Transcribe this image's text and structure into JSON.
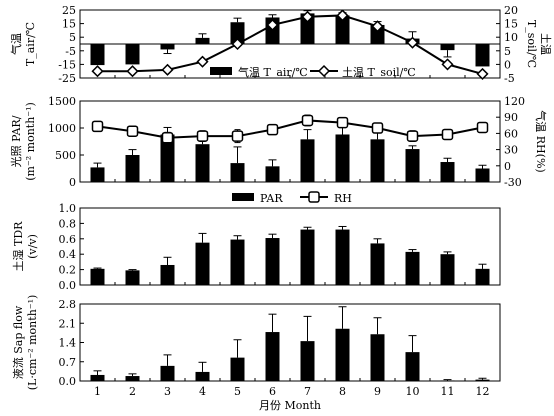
{
  "chart_data": [
    {
      "type": "bar+line",
      "panel": "a",
      "ylabel_left_lines": [
        "气温",
        "T_air/℃"
      ],
      "ylabel_right_lines": [
        "土温",
        "T_soil/℃"
      ],
      "ylim_left": [
        -25,
        25
      ],
      "yticks_left": [
        -25,
        -15,
        -5,
        5,
        15,
        25
      ],
      "ylim_right": [
        -5,
        20
      ],
      "yticks_right": [
        -5,
        0,
        5,
        10,
        15,
        20
      ],
      "categories": [
        1,
        2,
        3,
        4,
        5,
        6,
        7,
        8,
        9,
        10,
        11,
        12
      ],
      "series": [
        {
          "name": "气温 T_air/℃",
          "kind": "bar",
          "axis": "left",
          "values": [
            -15.5,
            -15,
            -4,
            4.5,
            16,
            19.5,
            22.5,
            21,
            14,
            4,
            -4.5,
            -16.5
          ],
          "errors": [
            0,
            0,
            3,
            3,
            3,
            2,
            2,
            2,
            2.5,
            5,
            5,
            0
          ]
        },
        {
          "name": "土温 T_soil/℃",
          "kind": "line",
          "axis": "right",
          "values": [
            -2.5,
            -2.5,
            -2,
            1,
            7.5,
            14.5,
            17.5,
            18,
            14,
            8,
            0,
            -3.5
          ]
        }
      ],
      "legend": [
        {
          "symbol": "bar",
          "label": "气温 T_air/℃"
        },
        {
          "symbol": "diamond-line",
          "label": "土温 T_soil/℃"
        }
      ]
    },
    {
      "type": "bar+line",
      "panel": "b",
      "ylabel_left_lines": [
        "光照 PAR/",
        "(m⁻² month⁻¹)"
      ],
      "ylabel_right": "气温 RH(%)",
      "ylim_left": [
        0,
        1500
      ],
      "yticks_left": [
        0,
        500,
        1000,
        1500
      ],
      "ylim_right": [
        -30,
        120
      ],
      "yticks_right": [
        -30,
        0,
        30,
        60,
        90,
        120
      ],
      "categories": [
        1,
        2,
        3,
        4,
        5,
        6,
        7,
        8,
        9,
        10,
        11,
        12
      ],
      "series": [
        {
          "name": "PAR",
          "kind": "bar",
          "axis": "left",
          "values": [
            270,
            500,
            880,
            700,
            350,
            290,
            790,
            880,
            790,
            610,
            370,
            250
          ],
          "errors": [
            80,
            100,
            130,
            160,
            300,
            120,
            180,
            150,
            150,
            60,
            70,
            60
          ]
        },
        {
          "name": "RH",
          "kind": "line",
          "axis": "right",
          "values": [
            73,
            64,
            52,
            55,
            55,
            67,
            84,
            80,
            70,
            55,
            58,
            71
          ],
          "errors": [
            0,
            5,
            10,
            10,
            12,
            8,
            10,
            7,
            7,
            10,
            0,
            0
          ]
        }
      ],
      "legend": [
        {
          "symbol": "bar",
          "label": "PAR"
        },
        {
          "symbol": "square-line",
          "label": "RH"
        }
      ]
    },
    {
      "type": "bar",
      "panel": "c",
      "ylabel_lines": [
        "土湿 TDR",
        "(v/v)"
      ],
      "ylim": [
        0,
        1.0
      ],
      "yticks": [
        0,
        0.2,
        0.4,
        0.6,
        0.8,
        1.0
      ],
      "ytick_labels": [
        "0.0",
        "0.2",
        "0.4",
        "0.6",
        "0.8",
        "1.0"
      ],
      "categories": [
        1,
        2,
        3,
        4,
        5,
        6,
        7,
        8,
        9,
        10,
        11,
        12
      ],
      "series": [
        {
          "name": "TDR",
          "kind": "bar",
          "values": [
            0.21,
            0.19,
            0.26,
            0.55,
            0.59,
            0.61,
            0.72,
            0.72,
            0.54,
            0.43,
            0.4,
            0.21
          ],
          "errors": [
            0.01,
            0.01,
            0.1,
            0.12,
            0.05,
            0.05,
            0.03,
            0.04,
            0.06,
            0.03,
            0.03,
            0.06
          ]
        }
      ]
    },
    {
      "type": "bar",
      "panel": "d",
      "ylabel_lines": [
        "液流 Sap flow",
        "(L·cm⁻² month⁻¹)"
      ],
      "ylim": [
        0,
        2.8
      ],
      "yticks": [
        0,
        0.7,
        1.4,
        2.1,
        2.8
      ],
      "ytick_labels": [
        "0.0",
        "0.7",
        "1.4",
        "2.1",
        "2.8"
      ],
      "xlabel": "月份 Month",
      "categories": [
        1,
        2,
        3,
        4,
        5,
        6,
        7,
        8,
        9,
        10,
        11,
        12
      ],
      "series": [
        {
          "name": "Sap flow",
          "kind": "bar",
          "values": [
            0.22,
            0.18,
            0.55,
            0.33,
            0.85,
            1.78,
            1.45,
            1.9,
            1.7,
            1.05,
            0.02,
            0.05
          ],
          "errors": [
            0.15,
            0.08,
            0.4,
            0.35,
            0.65,
            0.65,
            0.9,
            0.8,
            0.6,
            0.6,
            0.03,
            0.05
          ]
        }
      ]
    }
  ]
}
